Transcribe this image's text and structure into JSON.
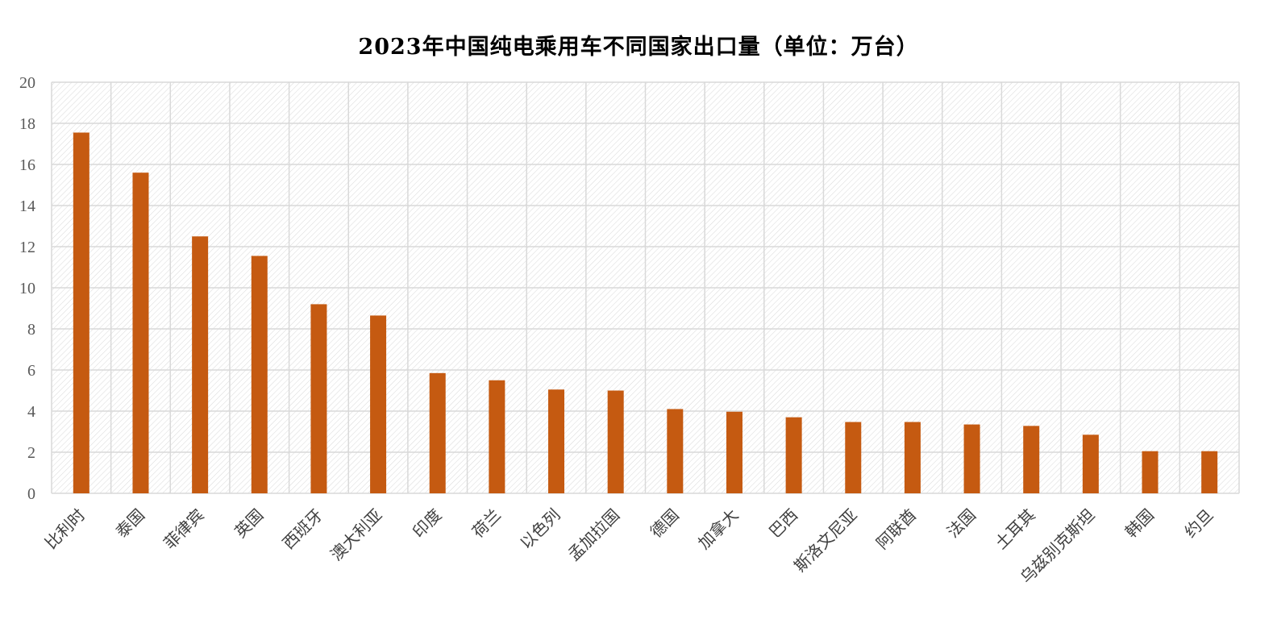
{
  "chart_data": {
    "type": "bar",
    "title": "2023年中国纯电乘用车不同国家出口量（单位：万台）",
    "xlabel": "",
    "ylabel": "",
    "ylim": [
      0,
      20
    ],
    "yticks": [
      "0",
      "2",
      "4",
      "6",
      "8",
      "10",
      "12",
      "14",
      "16",
      "18",
      "20"
    ],
    "grid": true,
    "legend": "none",
    "bar_color": "#C55A11",
    "categories": [
      "比利时",
      "泰国",
      "菲律宾",
      "英国",
      "西班牙",
      "澳大利亚",
      "印度",
      "荷兰",
      "以色列",
      "孟加拉国",
      "德国",
      "加拿大",
      "巴西",
      "斯洛文尼亚",
      "阿联酋",
      "法国",
      "土耳其",
      "乌兹别克斯坦",
      "韩国",
      "约旦"
    ],
    "values": [
      17.55,
      15.6,
      12.5,
      11.55,
      9.2,
      8.65,
      5.85,
      5.5,
      5.05,
      5.0,
      4.1,
      3.97,
      3.7,
      3.47,
      3.47,
      3.35,
      3.28,
      2.85,
      2.05,
      2.05
    ]
  }
}
